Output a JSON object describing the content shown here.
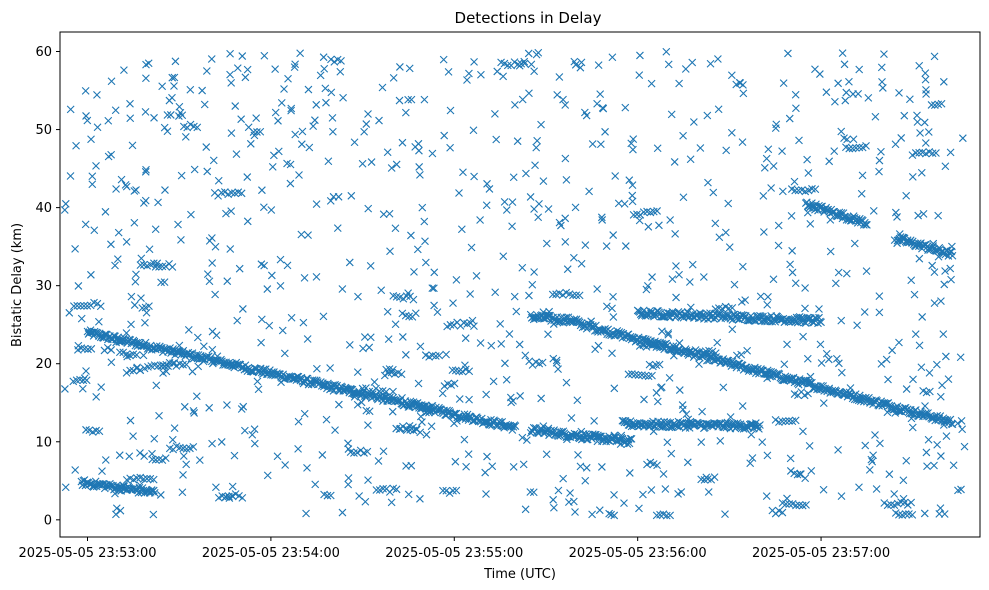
{
  "chart_data": {
    "type": "scatter",
    "title": "Detections in Delay",
    "xlabel": "Time (UTC)",
    "ylabel": "Bistatic Delay (km)",
    "x_ticks": [
      "2025-05-05 23:53:00",
      "2025-05-05 23:54:00",
      "2025-05-05 23:55:00",
      "2025-05-05 23:56:00",
      "2025-05-05 23:57:00"
    ],
    "y_ticks": [
      0,
      10,
      20,
      30,
      40,
      50,
      60
    ],
    "xlim": [
      "2025-05-05 23:52:51",
      "2025-05-05 23:57:52"
    ],
    "ylim": [
      -2.2,
      62.5
    ],
    "marker": "x",
    "color": "#1f77b4",
    "tracks": [
      {
        "x": [
          "2025-05-05 23:53:00",
          "2025-05-05 23:55:20"
        ],
        "y": [
          24.0,
          11.8
        ]
      },
      {
        "x": [
          "2025-05-05 23:55:25",
          "2025-05-05 23:55:40"
        ],
        "y": [
          26.0,
          25.5
        ]
      },
      {
        "x": [
          "2025-05-05 23:55:40",
          "2025-05-05 23:57:43"
        ],
        "y": [
          25.2,
          12.5
        ]
      },
      {
        "x": [
          "2025-05-05 23:55:25",
          "2025-05-05 23:55:58"
        ],
        "y": [
          11.5,
          10.0
        ]
      },
      {
        "x": [
          "2025-05-05 23:52:58",
          "2025-05-05 23:53:22"
        ],
        "y": [
          4.8,
          3.5
        ]
      },
      {
        "x": [
          "2025-05-05 23:56:55",
          "2025-05-05 23:57:15"
        ],
        "y": [
          40.5,
          38.0
        ]
      },
      {
        "x": [
          "2025-05-05 23:57:25",
          "2025-05-05 23:57:43"
        ],
        "y": [
          36.0,
          34.0
        ]
      },
      {
        "x": [
          "2025-05-05 23:56:00",
          "2025-05-05 23:57:00"
        ],
        "y": [
          26.5,
          25.5
        ]
      },
      {
        "x": [
          "2025-05-05 23:55:55",
          "2025-05-05 23:56:40"
        ],
        "y": [
          12.3,
          12.0
        ]
      }
    ],
    "scatter_noise": {
      "x_range": [
        "2025-05-05 23:52:52",
        "2025-05-05 23:57:47"
      ],
      "y_range": [
        0.5,
        60
      ]
    },
    "grid": false,
    "legend": "none"
  }
}
